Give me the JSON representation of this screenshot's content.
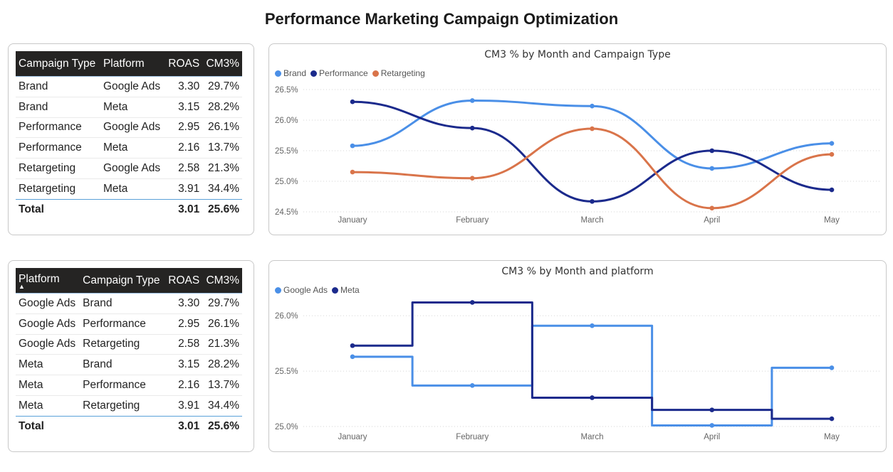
{
  "page": {
    "title": "Performance Marketing Campaign Optimization"
  },
  "table1": {
    "headers": [
      "Campaign Type",
      "Platform",
      "ROAS",
      "CM3%"
    ],
    "rows": [
      [
        "Brand",
        "Google Ads",
        "3.30",
        "29.7%"
      ],
      [
        "Brand",
        "Meta",
        "3.15",
        "28.2%"
      ],
      [
        "Performance",
        "Google Ads",
        "2.95",
        "26.1%"
      ],
      [
        "Performance",
        "Meta",
        "2.16",
        "13.7%"
      ],
      [
        "Retargeting",
        "Google Ads",
        "2.58",
        "21.3%"
      ],
      [
        "Retargeting",
        "Meta",
        "3.91",
        "34.4%"
      ]
    ],
    "total": {
      "label": "Total",
      "roas": "3.01",
      "cm3": "25.6%"
    }
  },
  "table2": {
    "headers": [
      "Platform",
      "Campaign Type",
      "ROAS",
      "CM3%"
    ],
    "sort_indicator": "▲",
    "rows": [
      [
        "Google Ads",
        "Brand",
        "3.30",
        "29.7%"
      ],
      [
        "Google Ads",
        "Performance",
        "2.95",
        "26.1%"
      ],
      [
        "Google Ads",
        "Retargeting",
        "2.58",
        "21.3%"
      ],
      [
        "Meta",
        "Brand",
        "3.15",
        "28.2%"
      ],
      [
        "Meta",
        "Performance",
        "2.16",
        "13.7%"
      ],
      [
        "Meta",
        "Retargeting",
        "3.91",
        "34.4%"
      ]
    ],
    "total": {
      "label": "Total",
      "roas": "3.01",
      "cm3": "25.6%"
    }
  },
  "chart_data": [
    {
      "type": "line",
      "title": "CM3 % by Month and Campaign Type",
      "curve": "smooth",
      "categories": [
        "January",
        "February",
        "March",
        "April",
        "May"
      ],
      "ylim": [
        24.5,
        26.5
      ],
      "yticks": [
        24.5,
        25.0,
        25.5,
        26.0,
        26.5
      ],
      "ytick_labels": [
        "24.5%",
        "25.0%",
        "25.5%",
        "26.0%",
        "26.5%"
      ],
      "grid": true,
      "legend": "top-left",
      "series": [
        {
          "name": "Brand",
          "color": "#4a8fe7",
          "values": [
            25.58,
            26.32,
            26.23,
            25.21,
            25.62
          ]
        },
        {
          "name": "Performance",
          "color": "#1b2a8c",
          "values": [
            26.3,
            25.87,
            24.67,
            25.5,
            24.86
          ]
        },
        {
          "name": "Retargeting",
          "color": "#d9744a",
          "values": [
            25.15,
            25.05,
            25.86,
            24.56,
            25.44
          ]
        }
      ]
    },
    {
      "type": "line",
      "title": "CM3 % by Month and platform",
      "curve": "step",
      "categories": [
        "January",
        "February",
        "March",
        "April",
        "May"
      ],
      "ylim": [
        25.0,
        26.2
      ],
      "yticks": [
        25.0,
        25.5,
        26.0
      ],
      "ytick_labels": [
        "25.0%",
        "25.5%",
        "26.0%"
      ],
      "grid": true,
      "legend": "top-left",
      "series": [
        {
          "name": "Google Ads",
          "color": "#4a8fe7",
          "values": [
            25.63,
            25.37,
            25.91,
            25.01,
            25.53
          ]
        },
        {
          "name": "Meta",
          "color": "#1b2a8c",
          "values": [
            25.73,
            26.12,
            25.26,
            25.15,
            25.07
          ]
        }
      ]
    }
  ]
}
